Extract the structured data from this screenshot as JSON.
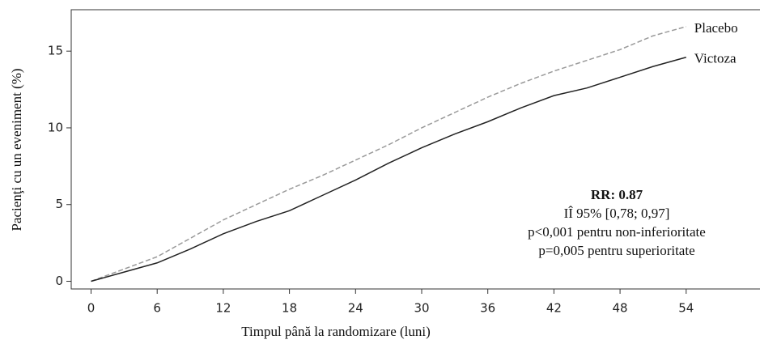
{
  "chart_data": {
    "type": "line",
    "x": [
      0,
      3,
      6,
      9,
      12,
      15,
      18,
      21,
      24,
      27,
      30,
      33,
      36,
      39,
      42,
      45,
      48,
      51,
      54
    ],
    "series": [
      {
        "name": "Placebo",
        "color": "#9a9a9a",
        "dash": true,
        "values": [
          0,
          0.8,
          1.6,
          2.8,
          4.0,
          5.0,
          6.0,
          6.9,
          7.9,
          8.9,
          10.0,
          11.0,
          12.0,
          12.9,
          13.7,
          14.4,
          15.1,
          16.0,
          16.6
        ]
      },
      {
        "name": "Victoza",
        "color": "#222222",
        "dash": false,
        "values": [
          0,
          0.6,
          1.2,
          2.1,
          3.1,
          3.9,
          4.6,
          5.6,
          6.6,
          7.7,
          8.7,
          9.6,
          10.4,
          11.3,
          12.1,
          12.6,
          13.3,
          14.0,
          14.6
        ]
      }
    ],
    "xlabel": "Timpul până la randomizare (luni)",
    "ylabel": "Pacienţi cu un eveniment (%)",
    "xlim": [
      -1.8,
      60.7
    ],
    "xticks": [
      0,
      6,
      12,
      18,
      24,
      30,
      36,
      42,
      48,
      54
    ],
    "ylim": [
      -0.5,
      17.7
    ],
    "yticks": [
      0,
      5,
      10,
      15
    ],
    "annotations": [
      "RR: 0.87",
      "IÎ 95% [0,78; 0,97]",
      "p<0,001 pentru non-inferioritate",
      "p=0,005 pentru superioritate"
    ]
  }
}
